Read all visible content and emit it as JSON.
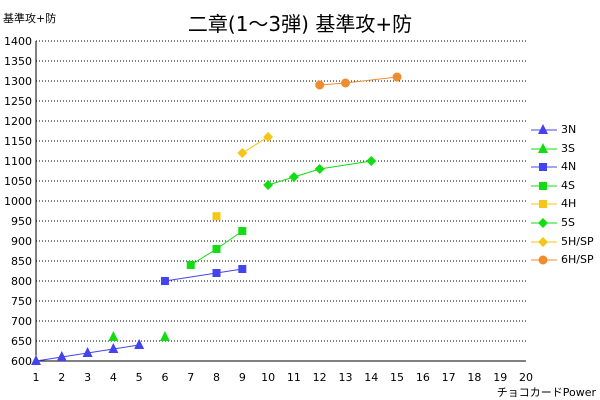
{
  "chart_data": {
    "type": "line",
    "title": "二章(1～3弾) 基準攻+防",
    "xlabel": "チョコカードPower",
    "ylabel": "基準攻+防",
    "xlim": [
      1,
      20
    ],
    "ylim": [
      600,
      1400
    ],
    "xticks": [
      "1",
      "2",
      "3",
      "4",
      "5",
      "6",
      "7",
      "8",
      "9",
      "10",
      "11",
      "12",
      "13",
      "14",
      "15",
      "16",
      "17",
      "18",
      "19",
      "20"
    ],
    "yticks": [
      "600",
      "650",
      "700",
      "750",
      "800",
      "850",
      "900",
      "950",
      "1000",
      "1050",
      "1100",
      "1150",
      "1200",
      "1250",
      "1300",
      "1350",
      "1400"
    ],
    "grid": "horizontal dotted",
    "legend_position": "right",
    "series": [
      {
        "name": "3N",
        "color": "#4444ee",
        "marker": "triangle",
        "connected": true,
        "points": [
          [
            1,
            600
          ],
          [
            2,
            610
          ],
          [
            3,
            620
          ],
          [
            4,
            630
          ],
          [
            5,
            640
          ]
        ]
      },
      {
        "name": "3S",
        "color": "#11dd11",
        "marker": "triangle",
        "connected": false,
        "points": [
          [
            4,
            660
          ],
          [
            6,
            660
          ]
        ]
      },
      {
        "name": "4N",
        "color": "#4444ee",
        "marker": "square",
        "connected": true,
        "points": [
          [
            6,
            800
          ],
          [
            8,
            820
          ],
          [
            9,
            830
          ]
        ]
      },
      {
        "name": "4S",
        "color": "#11dd11",
        "marker": "square",
        "connected": true,
        "points": [
          [
            7,
            840
          ],
          [
            8,
            880
          ],
          [
            9,
            925
          ]
        ]
      },
      {
        "name": "4H",
        "color": "#f5c518",
        "marker": "square",
        "connected": false,
        "points": [
          [
            8,
            962
          ]
        ]
      },
      {
        "name": "5S",
        "color": "#11dd11",
        "marker": "diamond",
        "connected": true,
        "points": [
          [
            10,
            1040
          ],
          [
            11,
            1060
          ],
          [
            12,
            1080
          ],
          [
            14,
            1100
          ]
        ]
      },
      {
        "name": "5H/SP",
        "color": "#f5c518",
        "marker": "diamond",
        "connected": true,
        "points": [
          [
            9,
            1120
          ],
          [
            10,
            1160
          ]
        ]
      },
      {
        "name": "6H/SP",
        "color": "#f08c30",
        "marker": "circle",
        "connected": true,
        "points": [
          [
            12,
            1290
          ],
          [
            13,
            1295
          ],
          [
            15,
            1310
          ]
        ]
      }
    ]
  }
}
